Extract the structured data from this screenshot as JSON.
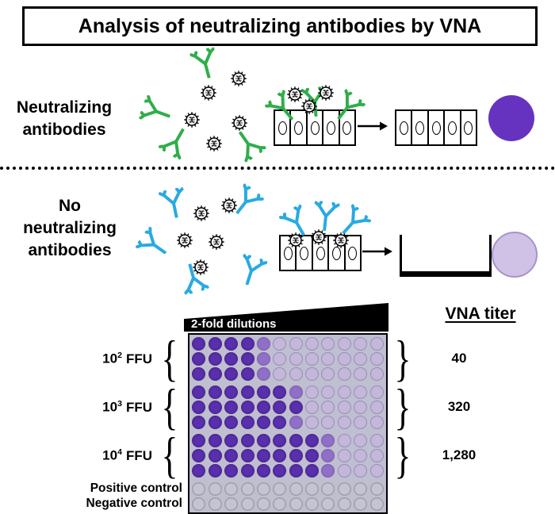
{
  "title": "Analysis of neutralizing antibodies by VNA",
  "top_section": {
    "label": [
      "Neutralizing",
      "antibodies"
    ]
  },
  "bottom_section": {
    "label": [
      "No",
      "neutralizing",
      "antibodies"
    ]
  },
  "assay": {
    "dilution_label": "2-fold dilutions",
    "titer_header": "VNA titer",
    "controls": [
      "Positive control",
      "Negative control"
    ]
  },
  "plate": {
    "cols": 12,
    "groups": [
      {
        "base": "10",
        "exp": "2",
        "unit": "FFU",
        "rows": 3,
        "dark_cols": 4,
        "titer": "40",
        "extra_dark": []
      },
      {
        "base": "10",
        "exp": "3",
        "unit": "FFU",
        "rows": 3,
        "dark_cols": 6,
        "titer": "320",
        "extra_dark": [
          [
            1,
            6
          ]
        ]
      },
      {
        "base": "10",
        "exp": "4",
        "unit": "FFU",
        "rows": 3,
        "dark_cols": 8,
        "titer": "1,280",
        "extra_dark": []
      }
    ],
    "control_rows": 2
  },
  "glyphs": {
    "brace_left": "{",
    "brace_right": "}"
  },
  "colors": {
    "antibody_green": "#2fae4a",
    "antibody_cyan": "#28aae2",
    "result_positive": "#6633c0",
    "result_negative": "#cfc2e6",
    "plate_bg": "#bfbfd0",
    "well_dark": "#5a2fae",
    "well_mid": "#8f6fc8",
    "well_light": "#c3b7da",
    "well_pale": "#c5c4d1"
  }
}
